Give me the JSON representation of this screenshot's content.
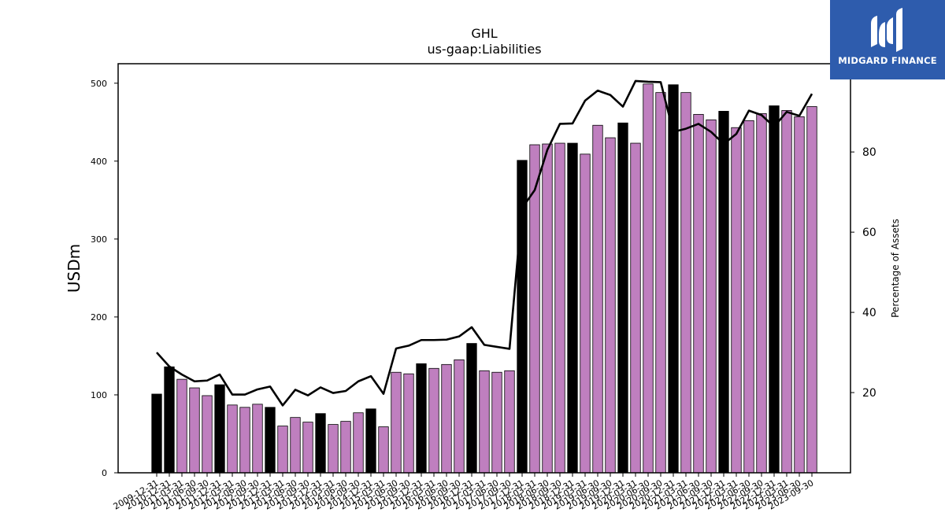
{
  "logo": {
    "text": "MIDGARD FINANCE"
  },
  "colors": {
    "bar_default": "#bf7fbf",
    "bar_highlight": "#000000",
    "line": "#000000"
  },
  "chart_data": {
    "type": "bar",
    "title": "GHL",
    "subtitle": "us-gaap:Liabilities",
    "ylabel": "USDm",
    "y2label": "Percentage of Assets",
    "ylim": [
      0,
      525
    ],
    "y2lim": [
      0,
      102
    ],
    "yticks": [
      0,
      100,
      200,
      300,
      400,
      500
    ],
    "y2ticks": [
      20,
      40,
      60,
      80
    ],
    "categories": [
      "2009-12-31",
      "2010-12-31",
      "2011-03-31",
      "2011-06-30",
      "2011-09-30",
      "2011-12-31",
      "2012-03-31",
      "2012-06-30",
      "2012-09-30",
      "2012-12-31",
      "2013-03-31",
      "2013-06-30",
      "2013-09-30",
      "2013-12-31",
      "2014-03-31",
      "2014-06-30",
      "2014-09-30",
      "2014-12-31",
      "2015-03-31",
      "2015-06-30",
      "2015-09-30",
      "2015-12-31",
      "2016-03-31",
      "2016-06-30",
      "2016-09-30",
      "2016-12-31",
      "2017-03-31",
      "2017-06-30",
      "2017-09-30",
      "2017-12-31",
      "2018-03-31",
      "2018-06-30",
      "2018-09-30",
      "2018-12-31",
      "2019-03-31",
      "2019-06-30",
      "2019-09-30",
      "2019-12-31",
      "2020-03-31",
      "2020-06-30",
      "2020-09-30",
      "2020-12-31",
      "2021-03-31",
      "2021-06-30",
      "2021-09-30",
      "2021-12-31",
      "2022-03-31",
      "2022-06-30",
      "2022-09-30",
      "2022-12-31",
      "2023-03-31",
      "2023-06-30",
      "2023-09-30"
    ],
    "series": [
      {
        "type": "bar",
        "values": [
          101,
          136,
          120,
          109,
          99,
          113,
          87,
          84,
          88,
          84,
          60,
          71,
          65,
          76,
          62,
          66,
          77,
          82,
          59,
          129,
          127,
          140,
          134,
          139,
          145,
          166,
          131,
          129,
          131,
          401,
          421,
          422,
          423,
          423,
          409,
          446,
          430,
          449,
          423,
          499,
          488,
          498,
          488,
          460,
          453,
          464,
          443,
          452,
          461,
          471,
          465,
          457,
          470
        ],
        "highlight": [
          1,
          1,
          0,
          0,
          0,
          1,
          0,
          0,
          0,
          1,
          0,
          0,
          0,
          1,
          0,
          0,
          0,
          1,
          0,
          0,
          0,
          1,
          0,
          0,
          0,
          1,
          0,
          0,
          0,
          1,
          0,
          0,
          0,
          1,
          0,
          0,
          0,
          1,
          0,
          0,
          0,
          1,
          0,
          0,
          0,
          1,
          0,
          0,
          0,
          1,
          0,
          0,
          0
        ]
      },
      {
        "type": "line",
        "axis": "y2",
        "values": [
          30,
          26.5,
          24.5,
          22.8,
          23,
          24.5,
          19.5,
          19.5,
          20.8,
          21.5,
          16.8,
          20.7,
          19.3,
          21.3,
          19.9,
          20.4,
          22.8,
          24.1,
          19.7,
          31,
          31.7,
          33.1,
          33.1,
          33.2,
          34,
          36.3,
          31.9,
          31.4,
          30.9,
          66,
          70.5,
          80.5,
          87,
          87.1,
          92.8,
          95.3,
          94.2,
          91.3,
          97.7,
          97.5,
          97.4,
          85,
          85.8,
          87,
          85,
          82,
          84.5,
          90.3,
          89.2,
          86.3,
          90,
          89,
          94.5
        ]
      }
    ]
  }
}
